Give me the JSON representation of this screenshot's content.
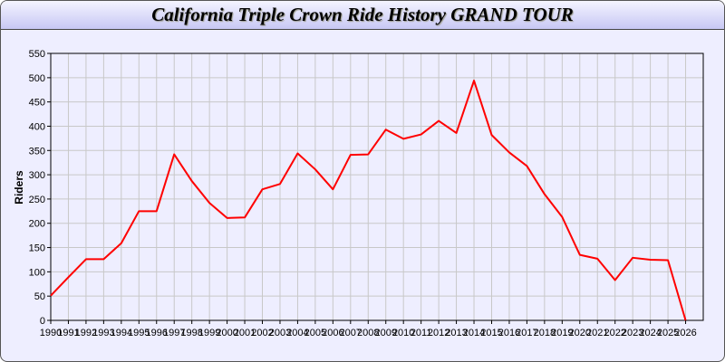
{
  "chart_data": {
    "type": "line",
    "title": "California Triple Crown Ride History GRAND TOUR",
    "xlabel": "",
    "ylabel": "Riders",
    "xlim": [
      1990,
      2027
    ],
    "ylim": [
      0,
      550
    ],
    "grid": true,
    "x": [
      1990,
      1991,
      1992,
      1993,
      1994,
      1995,
      1996,
      1997,
      1998,
      1999,
      2000,
      2001,
      2002,
      2003,
      2004,
      2005,
      2006,
      2007,
      2008,
      2009,
      2010,
      2011,
      2012,
      2013,
      2014,
      2015,
      2016,
      2017,
      2018,
      2019,
      2020,
      2021,
      2022,
      2023,
      2024,
      2025,
      2026
    ],
    "series": [
      {
        "values": [
          51,
          89,
          126,
          126,
          159,
          225,
          225,
          342,
          287,
          242,
          211,
          212,
          270,
          281,
          344,
          311,
          270,
          341,
          342,
          393,
          374,
          383,
          411,
          386,
          494,
          382,
          346,
          318,
          260,
          213,
          135,
          127,
          83,
          129,
          125,
          124,
          0
        ],
        "color": "#ff0000"
      }
    ],
    "yticks": [
      0,
      50,
      100,
      150,
      200,
      250,
      300,
      350,
      400,
      450,
      500,
      550
    ],
    "xticks": [
      "1990",
      "1991",
      "1992",
      "1993",
      "1994",
      "1995",
      "1996",
      "1997",
      "1998",
      "1999",
      "2000",
      "2001",
      "2002",
      "2003",
      "2004",
      "2005",
      "2006",
      "2007",
      "2008",
      "2009",
      "2010",
      "2011",
      "2012",
      "2013",
      "2014",
      "2015",
      "2016",
      "2017",
      "2018",
      "2019",
      "2020",
      "2021",
      "2022",
      "2023",
      "2024",
      "2025",
      "2026"
    ]
  }
}
